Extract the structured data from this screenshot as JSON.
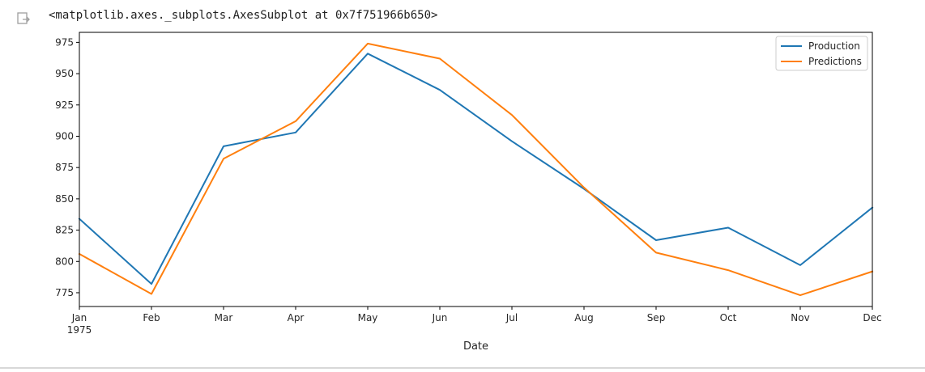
{
  "cell": {
    "output_repr": "<matplotlib.axes._subplots.AxesSubplot at 0x7f751966b650>",
    "output_icon": "output-arrow-icon"
  },
  "chart_data": {
    "type": "line",
    "xlabel": "Date",
    "ylabel": "",
    "title": "",
    "categories": [
      "Jan",
      "Feb",
      "Mar",
      "Apr",
      "May",
      "Jun",
      "Jul",
      "Aug",
      "Sep",
      "Oct",
      "Nov",
      "Dec"
    ],
    "year_label": "1975",
    "yticks": [
      775,
      800,
      825,
      850,
      875,
      900,
      925,
      950,
      975
    ],
    "ylim": [
      764,
      983
    ],
    "legend_position": "top-right",
    "grid": false,
    "series": [
      {
        "name": "Production",
        "color": "#1f77b4",
        "values": [
          834,
          782,
          892,
          903,
          966,
          937,
          896,
          858,
          817,
          827,
          797,
          843
        ]
      },
      {
        "name": "Predictions",
        "color": "#ff7f0e",
        "values": [
          806,
          774,
          882,
          912,
          974,
          962,
          917,
          859,
          807,
          793,
          773,
          792
        ]
      }
    ]
  }
}
